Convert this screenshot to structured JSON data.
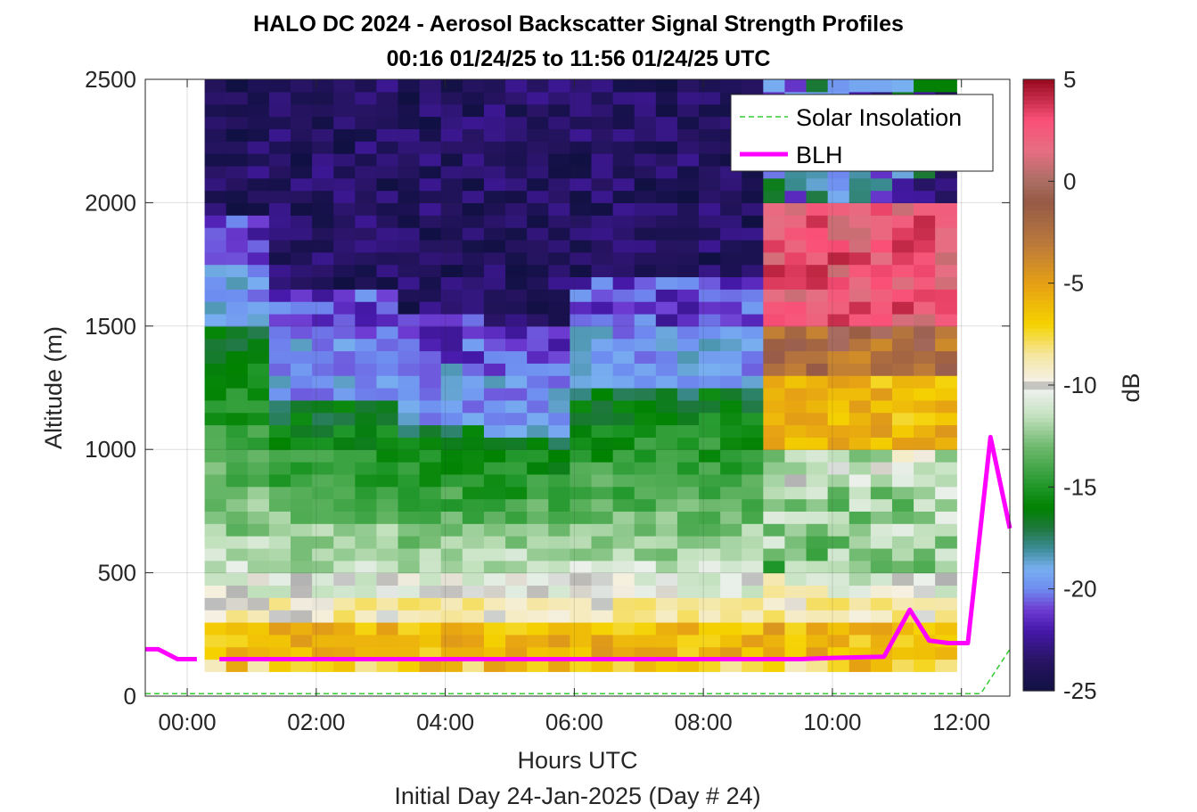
{
  "chart_data": {
    "type": "heatmap",
    "title_line1": "HALO DC 2024 - Aerosol Backscatter Signal Strength Profiles",
    "title_line2": "00:16 01/24/25 to 11:56 01/24/25  UTC",
    "xlabel": "Hours UTC",
    "xlabel2": "Initial Day 24-Jan-2025 (Day # 24)",
    "ylabel": "Altitude (m)",
    "colorbar_label": "dB",
    "xlim_hours": [
      -0.65,
      12.75
    ],
    "ylim": [
      0,
      2500
    ],
    "x_ticks": [
      {
        "value": 0,
        "label": "00:00"
      },
      {
        "value": 2,
        "label": "02:00"
      },
      {
        "value": 4,
        "label": "04:00"
      },
      {
        "value": 6,
        "label": "06:00"
      },
      {
        "value": 8,
        "label": "08:00"
      },
      {
        "value": 10,
        "label": "10:00"
      },
      {
        "value": 12,
        "label": "12:00"
      }
    ],
    "y_ticks": [
      {
        "value": 0,
        "label": "0"
      },
      {
        "value": 500,
        "label": "500"
      },
      {
        "value": 1000,
        "label": "1000"
      },
      {
        "value": 1500,
        "label": "1500"
      },
      {
        "value": 2000,
        "label": "2000"
      },
      {
        "value": 2500,
        "label": "2500"
      }
    ],
    "clim": [
      -25,
      5
    ],
    "colorbar_ticks": [
      {
        "value": 5,
        "label": "5"
      },
      {
        "value": 0,
        "label": "0"
      },
      {
        "value": -5,
        "label": "-5"
      },
      {
        "value": -10,
        "label": "-10"
      },
      {
        "value": -15,
        "label": "-15"
      },
      {
        "value": -20,
        "label": "-20"
      },
      {
        "value": -25,
        "label": "-25"
      }
    ],
    "grid": true,
    "legend": {
      "position": "top-right",
      "entries": [
        {
          "label": "Solar Insolation",
          "color": "#33cc33",
          "style": "dashed"
        },
        {
          "label": "BLH",
          "color": "#ff00ff",
          "style": "solid"
        }
      ]
    },
    "heatmap": {
      "time_start_hours": 0.27,
      "time_step_hours": 0.333,
      "alt_start_m": 100,
      "alt_step_m": 50,
      "n_times": 35,
      "n_alts": 48
    },
    "blh_series": [
      {
        "name": "BLH",
        "color": "#ff00ff",
        "segments": [
          [
            [
              -0.65,
              190
            ],
            [
              -0.45,
              190
            ],
            [
              -0.15,
              150
            ],
            [
              0.15,
              150
            ]
          ],
          [
            [
              0.5,
              150
            ],
            [
              2,
              150
            ],
            [
              4,
              150
            ],
            [
              5.5,
              150
            ],
            [
              6,
              150
            ],
            [
              8,
              150
            ],
            [
              9.5,
              150
            ],
            [
              10,
              155
            ],
            [
              10.8,
              160
            ],
            [
              11.2,
              350
            ],
            [
              11.5,
              225
            ],
            [
              11.8,
              215
            ],
            [
              12.1,
              215
            ],
            [
              12.45,
              1050
            ],
            [
              12.75,
              680
            ]
          ]
        ]
      },
      {
        "name": "Solar Insolation",
        "color": "#33cc33",
        "points": [
          [
            -0.65,
            10
          ],
          [
            12.3,
            10
          ],
          [
            12.75,
            190
          ]
        ]
      }
    ]
  }
}
